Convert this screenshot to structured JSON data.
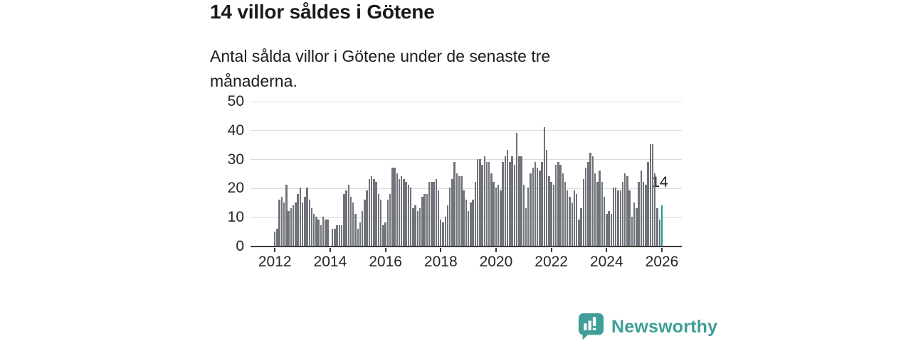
{
  "header": {
    "title": "14 villor såldes i Götene",
    "subtitle": "Antal sålda villor i Götene under de senaste tre månaderna."
  },
  "chart_data": {
    "type": "bar",
    "title": "14 villor såldes i Götene",
    "x_unit": "month",
    "x_start": "2012-01",
    "x_end": "2026-01",
    "xticks": [
      "2012",
      "2014",
      "2016",
      "2018",
      "2020",
      "2022",
      "2024",
      "2026"
    ],
    "yticks": [
      0,
      10,
      20,
      30,
      40,
      50
    ],
    "ylim": [
      0,
      50
    ],
    "grid": true,
    "legend": "none",
    "bar_color": "#707379",
    "highlight_color": "#17a09b",
    "highlight_index": 168,
    "highlight_label": "14",
    "values": [
      5,
      6,
      16,
      17,
      15,
      21,
      12,
      13,
      14,
      15,
      18,
      20,
      15,
      17,
      20,
      16,
      13,
      11,
      10,
      9,
      7,
      10,
      9,
      9,
      0,
      6,
      6,
      7,
      7,
      7,
      18,
      19,
      21,
      17,
      15,
      11,
      6,
      8,
      12,
      16,
      19,
      23,
      24,
      23,
      22,
      18,
      16,
      7,
      8,
      16,
      18,
      27,
      27,
      25,
      23,
      24,
      23,
      22,
      21,
      20,
      13,
      14,
      12,
      13,
      17,
      18,
      18,
      22,
      22,
      22,
      23,
      19,
      9,
      8,
      10,
      14,
      20,
      23,
      29,
      25,
      24,
      24,
      19,
      16,
      12,
      15,
      16,
      22,
      30,
      30,
      28,
      31,
      29,
      29,
      25,
      22,
      20,
      21,
      19,
      29,
      31,
      33,
      29,
      31,
      28,
      39,
      31,
      31,
      21,
      13,
      20,
      25,
      27,
      29,
      27,
      26,
      29,
      41,
      33,
      24,
      22,
      21,
      28,
      29,
      28,
      25,
      22,
      19,
      17,
      15,
      19,
      18,
      9,
      13,
      23,
      27,
      29,
      32,
      31,
      25,
      22,
      26,
      22,
      17,
      11,
      12,
      11,
      20,
      20,
      19,
      19,
      22,
      25,
      24,
      19,
      10,
      15,
      13,
      22,
      26,
      22,
      21,
      29,
      35,
      35,
      25,
      13,
      9,
      14
    ]
  },
  "footer": {
    "brand": "Newsworthy",
    "logo_icon": "newsworthy-speech-bubble-chart-icon",
    "brand_color": "#3f9e97"
  }
}
